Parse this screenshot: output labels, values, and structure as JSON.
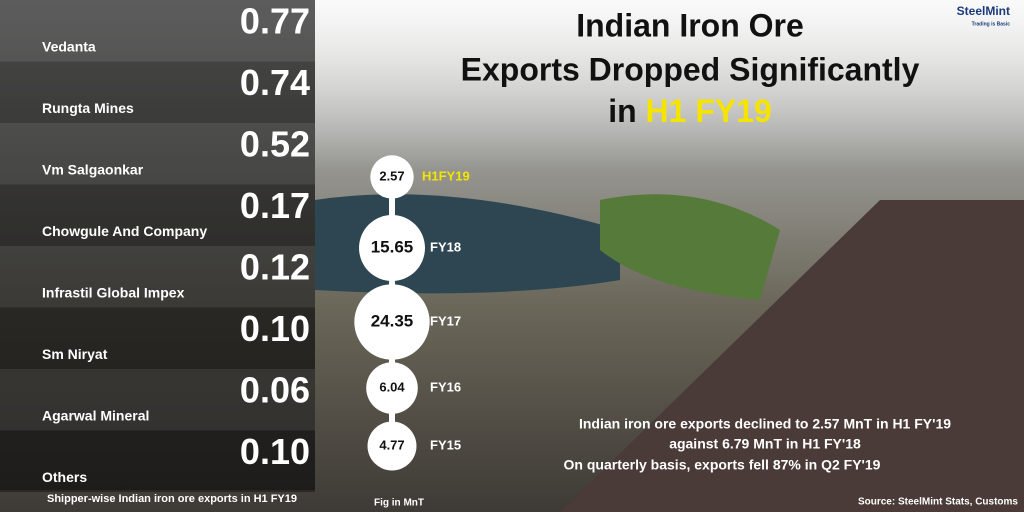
{
  "title": "Indian Iron Ore Exports Dropped Significantly in",
  "title_highlight": "H1 FY19",
  "brand": "SteelMint",
  "tagline": "Trading is Basic",
  "notes": [
    "Indian iron ore exports declined to 2.57 MnT in H1 FY'19",
    "against 6.79 MnT in H1 FY'18",
    "On quarterly basis, exports fell 87% in Q2 FY'19"
  ],
  "source": "Source: SteelMint Stats, Customs",
  "chart_data": [
    {
      "type": "list",
      "caption": "Shipper-wise Indian iron ore exports in H1 FY19",
      "categories": [
        "Vedanta",
        "Rungta Mines",
        "Vm Salgaonkar",
        "Chowgule And Company",
        "Infrastil Global Impex",
        "Sm Niryat",
        "Agarwal Mineral",
        "Others"
      ],
      "values": [
        0.77,
        0.74,
        0.52,
        0.17,
        0.12,
        0.1,
        0.06,
        0.1
      ],
      "value_labels": [
        "0.77",
        "0.74",
        "0.52",
        "0.17",
        "0.12",
        "0.10",
        "0.06",
        "0.10"
      ]
    },
    {
      "type": "bubble",
      "caption": "Fig in MnT",
      "categories": [
        "H1FY19",
        "FY18",
        "FY17",
        "FY16",
        "FY15"
      ],
      "values": [
        2.57,
        15.65,
        24.35,
        6.04,
        4.77
      ],
      "color": "#ffffff",
      "label_colors": [
        "#f5e400",
        "#ffffff",
        "#ffffff",
        "#ffffff",
        "#ffffff"
      ]
    }
  ]
}
